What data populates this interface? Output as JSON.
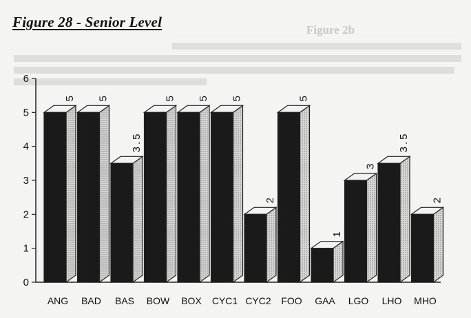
{
  "figure_title": "Figure 28 - Senior Level",
  "chart_data": {
    "type": "bar",
    "categories": [
      "ANG",
      "BAD",
      "BAS",
      "BOW",
      "BOX",
      "CYC1",
      "CYC2",
      "FOO",
      "GAA",
      "LGO",
      "LHO",
      "MHO"
    ],
    "values": [
      5,
      5,
      3.5,
      5,
      5,
      5,
      2,
      5,
      1,
      3,
      3.5,
      2
    ],
    "data_labels": [
      "5",
      "5",
      "3.5",
      "5",
      "5",
      "5",
      "2",
      "5",
      "1",
      "3",
      "3.5",
      "2"
    ],
    "title": "Figure 28 - Senior Level",
    "xlabel": "",
    "ylabel": "",
    "ylim": [
      0,
      6
    ],
    "yticks": [
      "0",
      "1",
      "2",
      "3",
      "4",
      "5",
      "6"
    ],
    "grid": false,
    "legend": "none",
    "style": "3d",
    "colors": {
      "bar_front": "#1a1a1a",
      "bar_top": "#f2f2f2",
      "bar_side": "#cfcfcf",
      "axis": "#222222",
      "background": "#f4f4f2"
    }
  }
}
